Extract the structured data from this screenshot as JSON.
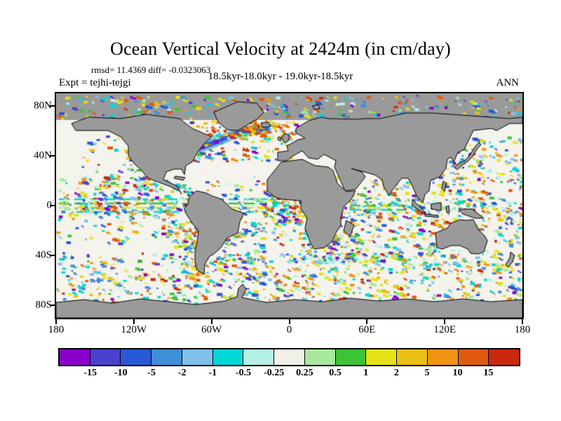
{
  "header": {
    "title": "Ocean Vertical Velocity at 2424m (in cm/day)",
    "stats": "rmsd= 11.4369 diff= -0.0323063",
    "period": "18.5kyr-18.0kyr - 19.0kyr-18.5kyr",
    "experiment": "Expt = tejhi-tejgi",
    "season": "ANN"
  },
  "axes": {
    "lat_ticks": [
      {
        "label": "80N",
        "lat": 80
      },
      {
        "label": "40N",
        "lat": 40
      },
      {
        "label": "0",
        "lat": 0
      },
      {
        "label": "40S",
        "lat": -40
      },
      {
        "label": "80S",
        "lat": -80
      }
    ],
    "lon_ticks": [
      {
        "label": "180",
        "lon": -180
      },
      {
        "label": "120W",
        "lon": -120
      },
      {
        "label": "60W",
        "lon": -60
      },
      {
        "label": "0",
        "lon": 0
      },
      {
        "label": "60E",
        "lon": 60
      },
      {
        "label": "120E",
        "lon": 120
      },
      {
        "label": "180",
        "lon": 180
      }
    ]
  },
  "colorbar": {
    "labels": [
      "-15",
      "-10",
      "-5",
      "-2",
      "-1",
      "-0.5",
      "-0.25",
      "0.25",
      "0.5",
      "1",
      "2",
      "5",
      "10",
      "15"
    ],
    "colors": [
      "#8b00c8",
      "#4b3fd0",
      "#2758d6",
      "#3f8ed8",
      "#7ec1e8",
      "#00d8d8",
      "#b4f0e6",
      "#f0f0e8",
      "#a8e89c",
      "#3cc434",
      "#e4e216",
      "#ecc014",
      "#f09414",
      "#e05a10",
      "#cc2810"
    ]
  },
  "chart_data": {
    "type": "heatmap",
    "title": "Ocean Vertical Velocity at 2424m (in cm/day)",
    "subtitle": "18.5kyr-18.0kyr - 19.0kyr-18.5kyr",
    "experiment": "tejhi-tejgi",
    "season": "ANN",
    "rmsd": 11.4369,
    "diff": -0.0323063,
    "variable": "ocean vertical velocity difference",
    "depth_m": 2424,
    "units": "cm/day",
    "projection": "equirectangular world map, longitude -180..180 centered on 0, latitude -90..90",
    "colorbar_levels": [
      -15,
      -10,
      -5,
      -2,
      -1,
      -0.5,
      -0.25,
      0.25,
      0.5,
      1,
      2,
      5,
      10,
      15
    ],
    "colorbar_colors": [
      "#8b00c8",
      "#4b3fd0",
      "#2758d6",
      "#3f8ed8",
      "#7ec1e8",
      "#00d8d8",
      "#b4f0e6",
      "#f0f0e8",
      "#a8e89c",
      "#3cc434",
      "#e4e216",
      "#ecc014",
      "#f09414",
      "#e05a10",
      "#cc2810"
    ],
    "land_color": "#9a9a9a",
    "ocean_color": "#f4f3ec",
    "xticks": [
      "180",
      "120W",
      "60W",
      "0",
      "60E",
      "120E",
      "180"
    ],
    "yticks": [
      "80N",
      "40N",
      "0",
      "40S",
      "80S"
    ],
    "legend_position": "bottom"
  }
}
